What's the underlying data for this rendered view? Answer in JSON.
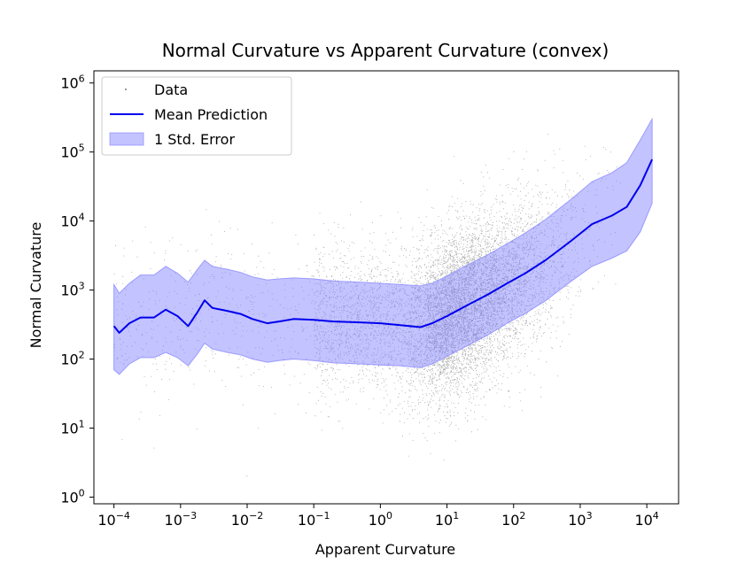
{
  "chart_data": {
    "type": "scatter",
    "title": "Normal Curvature vs Apparent Curvature (convex)",
    "xlabel": "Apparent Curvature",
    "ylabel": "Normal Curvature",
    "x_scale": "log",
    "y_scale": "log",
    "xlim": [
      5e-05,
      30000
    ],
    "ylim": [
      0.8,
      1500000
    ],
    "x_ticks": [
      {
        "base": "10",
        "exp": "−4",
        "value": 0.0001
      },
      {
        "base": "10",
        "exp": "−3",
        "value": 0.001
      },
      {
        "base": "10",
        "exp": "−2",
        "value": 0.01
      },
      {
        "base": "10",
        "exp": "−1",
        "value": 0.1
      },
      {
        "base": "10",
        "exp": "0",
        "value": 1
      },
      {
        "base": "10",
        "exp": "1",
        "value": 10
      },
      {
        "base": "10",
        "exp": "2",
        "value": 100
      },
      {
        "base": "10",
        "exp": "3",
        "value": 1000
      },
      {
        "base": "10",
        "exp": "4",
        "value": 10000
      }
    ],
    "y_ticks": [
      {
        "base": "10",
        "exp": "0",
        "value": 1
      },
      {
        "base": "10",
        "exp": "1",
        "value": 10
      },
      {
        "base": "10",
        "exp": "2",
        "value": 100
      },
      {
        "base": "10",
        "exp": "3",
        "value": 1000
      },
      {
        "base": "10",
        "exp": "4",
        "value": 10000
      },
      {
        "base": "10",
        "exp": "5",
        "value": 100000
      },
      {
        "base": "10",
        "exp": "6",
        "value": 1000000
      }
    ],
    "legend": {
      "placement": "top-left",
      "entries": [
        "Data",
        "Mean Prediction",
        "1 Std. Error"
      ]
    },
    "colors": {
      "scatter": "#000000",
      "mean_line": "#0000ee",
      "std_band": "#7b7bff",
      "std_band_edge": "#9a9aff"
    },
    "series": [
      {
        "name": "Mean Prediction",
        "x": [
          0.0001,
          0.00012,
          0.00017,
          0.00025,
          0.0004,
          0.0006,
          0.0009,
          0.0013,
          0.0018,
          0.0023,
          0.003,
          0.005,
          0.008,
          0.012,
          0.02,
          0.03,
          0.05,
          0.1,
          0.2,
          0.5,
          1,
          2,
          4,
          6,
          10,
          20,
          40,
          80,
          150,
          300,
          700,
          1500,
          3000,
          5000,
          8000,
          12000
        ],
        "y": [
          300,
          240,
          330,
          400,
          400,
          520,
          420,
          300,
          480,
          710,
          550,
          500,
          450,
          380,
          330,
          350,
          380,
          370,
          350,
          340,
          330,
          310,
          290,
          330,
          420,
          600,
          850,
          1250,
          1750,
          2700,
          5000,
          9000,
          12000,
          16000,
          33000,
          78000
        ]
      },
      {
        "name": "1 Std. Error",
        "x": [
          0.0001,
          0.00012,
          0.00017,
          0.00025,
          0.0004,
          0.0006,
          0.0009,
          0.0013,
          0.0018,
          0.0023,
          0.003,
          0.005,
          0.008,
          0.012,
          0.02,
          0.03,
          0.05,
          0.1,
          0.2,
          0.5,
          1,
          2,
          4,
          6,
          10,
          20,
          40,
          80,
          150,
          300,
          700,
          1500,
          3000,
          5000,
          8000,
          12000
        ],
        "upper": [
          1200,
          900,
          1250,
          1650,
          1650,
          2200,
          1750,
          1300,
          2000,
          2700,
          2200,
          2000,
          1800,
          1550,
          1400,
          1450,
          1500,
          1450,
          1350,
          1300,
          1250,
          1200,
          1150,
          1250,
          1600,
          2300,
          3200,
          4700,
          6700,
          10500,
          20000,
          37000,
          50000,
          70000,
          150000,
          300000
        ],
        "lower": [
          70,
          60,
          85,
          105,
          105,
          125,
          105,
          80,
          120,
          170,
          140,
          125,
          115,
          100,
          90,
          95,
          100,
          95,
          88,
          85,
          82,
          80,
          75,
          85,
          110,
          155,
          220,
          330,
          460,
          700,
          1300,
          2200,
          2900,
          3700,
          7000,
          18000
        ]
      }
    ]
  }
}
